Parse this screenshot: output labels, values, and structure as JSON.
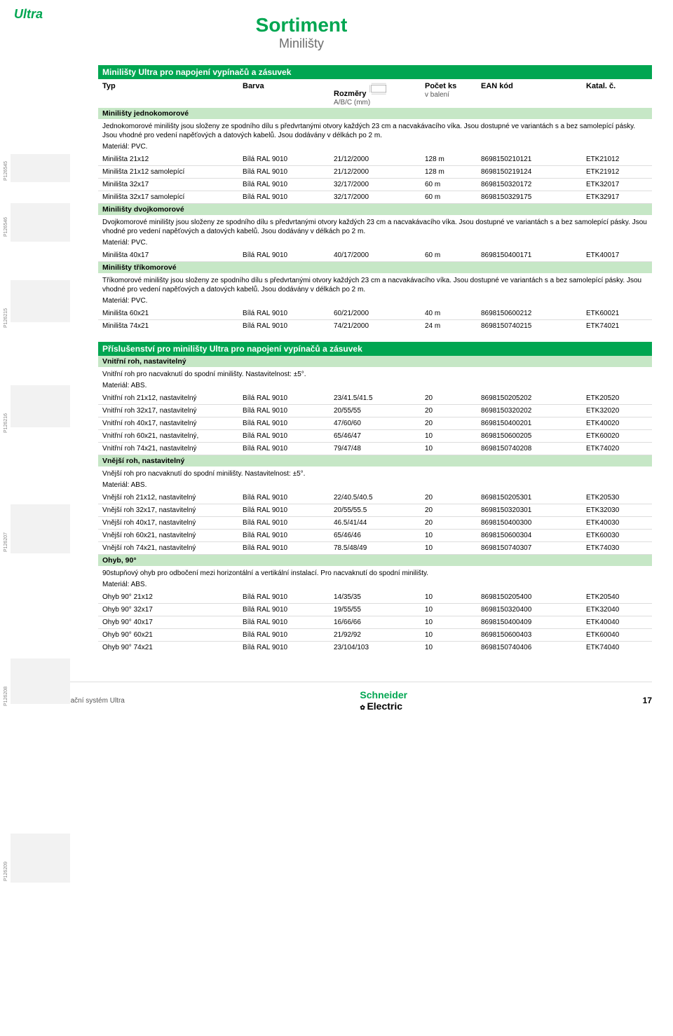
{
  "brand": "Ultra",
  "title": {
    "main": "Sortiment",
    "sub": "Minilišty"
  },
  "colHeader": {
    "c1": "Typ",
    "c2": "Barva",
    "c3a": "Rozměry",
    "c3b": "A/B/C (mm)",
    "c4a": "Počet ks",
    "c4b": "v balení",
    "c5": "EAN kód",
    "c6": "Katal. č."
  },
  "sections": {
    "s1": {
      "title": "Minilišty Ultra pro napojení vypínačů a zásuvek",
      "groups": [
        {
          "sub": "Minilišty jednokomorové",
          "desc": "Jednokomorové minilišty jsou složeny ze spodního dílu s předvrtanými otvory každých 23 cm a nacvakávacího víka. Jsou dostupné ve variantách s a bez samolepící pásky. Jsou vhodné pro vedení napěťových a datových kabelů. Jsou dodávány v délkách po 2 m.",
          "material": "Materiál: PVC.",
          "rows": [
            {
              "typ": "Minilišta 21x12",
              "barva": "Bílá RAL 9010",
              "roz": "21/12/2000",
              "ks": "128 m",
              "ean": "8698150210121",
              "kat": "ETK21012"
            },
            {
              "typ": "Minilišta 21x12 samolepící",
              "barva": "Bílá RAL 9010",
              "roz": "21/12/2000",
              "ks": "128 m",
              "ean": "8698150219124",
              "kat": "ETK21912"
            },
            {
              "typ": "Minilišta 32x17",
              "barva": "Bílá RAL 9010",
              "roz": "32/17/2000",
              "ks": "60 m",
              "ean": "8698150320172",
              "kat": "ETK32017"
            },
            {
              "typ": "Minilišta 32x17 samolepící",
              "barva": "Bílá RAL 9010",
              "roz": "32/17/2000",
              "ks": "60 m",
              "ean": "8698150329175",
              "kat": "ETK32917"
            }
          ]
        },
        {
          "sub": "Minilišty dvojkomorové",
          "desc": "Dvojkomorové minilišty jsou složeny ze spodního dílu s předvrtanými otvory každých 23 cm a nacvakávacího víka. Jsou dostupné ve variantách s a bez samolepící pásky. Jsou vhodné pro vedení napěťových a datových kabelů. Jsou dodávány v délkách po 2 m.",
          "material": "Materiál: PVC.",
          "rows": [
            {
              "typ": "Minilišta 40x17",
              "barva": "Bílá RAL 9010",
              "roz": "40/17/2000",
              "ks": "60 m",
              "ean": "8698150400171",
              "kat": "ETK40017"
            }
          ]
        },
        {
          "sub": "Minilišty tříkomorové",
          "desc": "Tříkomorové minilišty jsou složeny ze spodního dílu s předvrtanými otvory každých 23 cm a nacvakávacího víka. Jsou dostupné ve variantách s a bez samolepící pásky. Jsou vhodné pro vedení napěťových a datových kabelů. Jsou dodávány v délkách po 2 m.",
          "material": "Materiál: PVC.",
          "rows": [
            {
              "typ": "Minilišta 60x21",
              "barva": "Bílá RAL 9010",
              "roz": "60/21/2000",
              "ks": "40 m",
              "ean": "8698150600212",
              "kat": "ETK60021"
            },
            {
              "typ": "Minilišta 74x21",
              "barva": "Bílá RAL 9010",
              "roz": "74/21/2000",
              "ks": "24 m",
              "ean": "8698150740215",
              "kat": "ETK74021"
            }
          ]
        }
      ]
    },
    "s2": {
      "title": "Příslušenství pro minilišty Ultra pro napojení vypínačů a zásuvek",
      "groups": [
        {
          "sub": "Vnitřní roh, nastavitelný",
          "desc": "Vnitřní roh pro nacvaknutí do spodní minilišty. Nastavitelnost: ±5°.",
          "material": "Materiál: ABS.",
          "rows": [
            {
              "typ": "Vnitřní roh 21x12, nastavitelný",
              "barva": "Bílá RAL 9010",
              "roz": "23/41.5/41.5",
              "ks": "20",
              "ean": "8698150205202",
              "kat": "ETK20520"
            },
            {
              "typ": "Vnitřní roh 32x17, nastavitelný",
              "barva": "Bílá RAL 9010",
              "roz": "20/55/55",
              "ks": "20",
              "ean": "8698150320202",
              "kat": "ETK32020"
            },
            {
              "typ": "Vnitřní roh 40x17, nastavitelný",
              "barva": "Bílá RAL 9010",
              "roz": "47/60/60",
              "ks": "20",
              "ean": "8698150400201",
              "kat": "ETK40020"
            },
            {
              "typ": "Vnitřní roh 60x21, nastavitelný,",
              "barva": "Bílá RAL 9010",
              "roz": "65/46/47",
              "ks": "10",
              "ean": "8698150600205",
              "kat": "ETK60020"
            },
            {
              "typ": "Vnitřní roh 74x21, nastavitelný",
              "barva": "Bílá RAL 9010",
              "roz": "79/47/48",
              "ks": "10",
              "ean": "8698150740208",
              "kat": "ETK74020"
            }
          ]
        },
        {
          "sub": "Vnější roh, nastavitelný",
          "desc": "Vnější roh pro nacvaknutí do spodní minilišty. Nastavitelnost: ±5°.",
          "material": "Materiál: ABS.",
          "rows": [
            {
              "typ": "Vnější roh 21x12, nastavitelný",
              "barva": "Bílá RAL 9010",
              "roz": "22/40.5/40.5",
              "ks": "20",
              "ean": "8698150205301",
              "kat": "ETK20530"
            },
            {
              "typ": "Vnější roh 32x17, nastavitelný",
              "barva": "Bílá RAL 9010",
              "roz": "20/55/55.5",
              "ks": "20",
              "ean": "8698150320301",
              "kat": "ETK32030"
            },
            {
              "typ": "Vnější roh 40x17, nastavitelný",
              "barva": "Bílá RAL 9010",
              "roz": "46.5/41/44",
              "ks": "20",
              "ean": "8698150400300",
              "kat": "ETK40030"
            },
            {
              "typ": "Vnější roh 60x21, nastavitelný",
              "barva": "Bílá RAL 9010",
              "roz": "65/46/46",
              "ks": "10",
              "ean": "8698150600304",
              "kat": "ETK60030"
            },
            {
              "typ": "Vnější roh 74x21, nastavitelný",
              "barva": "Bílá RAL 9010",
              "roz": "78.5/48/49",
              "ks": "10",
              "ean": "8698150740307",
              "kat": "ETK74030"
            }
          ]
        },
        {
          "sub": "Ohyb, 90°",
          "desc": "90stupňový ohyb pro odbočení mezi horizontální a vertikální instalací. Pro nacvaknutí do spodní minilišty.",
          "material": "Materiál: ABS.",
          "rows": [
            {
              "typ": "Ohyb 90° 21x12",
              "barva": "Bílá RAL 9010",
              "roz": "14/35/35",
              "ks": "10",
              "ean": "8698150205400",
              "kat": "ETK20540"
            },
            {
              "typ": "Ohyb 90° 32x17",
              "barva": "Bílá RAL 9010",
              "roz": "19/55/55",
              "ks": "10",
              "ean": "8698150320400",
              "kat": "ETK32040"
            },
            {
              "typ": "Ohyb 90° 40x17",
              "barva": "Bílá RAL 9010",
              "roz": "16/66/66",
              "ks": "10",
              "ean": "8698150400409",
              "kat": "ETK40040"
            },
            {
              "typ": "Ohyb 90° 60x21",
              "barva": "Bílá RAL 9010",
              "roz": "21/92/92",
              "ks": "10",
              "ean": "8698150600403",
              "kat": "ETK60040"
            },
            {
              "typ": "Ohyb 90° 74x21",
              "barva": "Bílá RAL 9010",
              "roz": "23/104/103",
              "ks": "10",
              "ean": "8698150740406",
              "kat": "ETK74040"
            }
          ]
        }
      ]
    }
  },
  "images": {
    "labels": [
      "P126545",
      "P126546",
      "P126215",
      "P126216",
      "P126207",
      "P126208",
      "P126209"
    ]
  },
  "footer": {
    "left": "Rozvodný instalační systém Ultra",
    "logoA": "Schneider",
    "logoB": "Electric",
    "page": "17"
  }
}
